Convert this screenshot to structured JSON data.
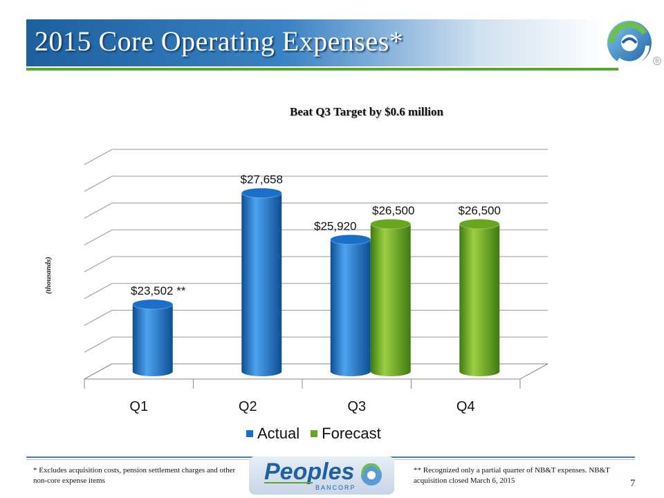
{
  "slide": {
    "title": "2015 Core Operating Expenses*",
    "subtitle": "Beat Q3 Target by $0.6 million",
    "page_number": "7"
  },
  "colors": {
    "actual": "#1a6fc9",
    "forecast": "#6aa51e",
    "title_bg": "#2a6fb0",
    "accent_green": "#5aa532"
  },
  "chart_data": {
    "type": "bar",
    "categories": [
      "Q1",
      "Q2",
      "Q3",
      "Q4"
    ],
    "series": [
      {
        "name": "Actual",
        "values": [
          23502,
          27658,
          25920,
          null
        ],
        "labels": [
          "$23,502 **",
          "$27,658",
          "$25,920",
          ""
        ]
      },
      {
        "name": "Forecast",
        "values": [
          null,
          null,
          26500,
          26500
        ],
        "labels": [
          "",
          "",
          "$26,500",
          "$26,500"
        ]
      }
    ],
    "ylabel": "(thousands)",
    "ylim": [
      21000,
      29000
    ],
    "grid": true,
    "legend_position": "bottom",
    "three_d": true
  },
  "footnotes": {
    "left": "* Excludes acquisition costs, pension settlement charges and other non-core expense items",
    "right": "** Recognized only a partial quarter of NB&T expenses. NB&T acquisition closed March 6, 2015"
  },
  "logo": {
    "name": "Peoples",
    "sub": "BANCORP"
  }
}
